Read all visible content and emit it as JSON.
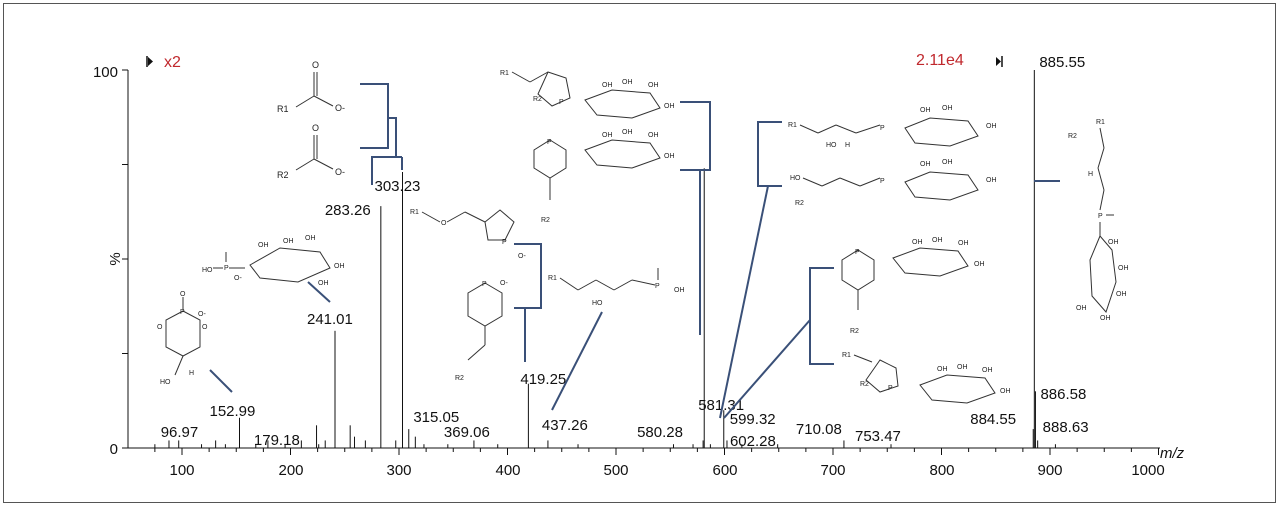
{
  "chart_data": {
    "type": "bar",
    "xlabel": "m/z",
    "ylabel": "%",
    "xlim": [
      50,
      1000
    ],
    "ylim": [
      0,
      100
    ],
    "x_ticks": [
      "100",
      "200",
      "300",
      "400",
      "500",
      "600",
      "700",
      "800",
      "900",
      "1000"
    ],
    "y_ticks": [
      "0",
      "100"
    ],
    "zoom_marker": "x2",
    "base_peak_intensity": "2.11e4",
    "labeled_peaks": [
      {
        "mz": 96.97,
        "label": "96.97",
        "intensity": 2
      },
      {
        "mz": 152.99,
        "label": "152.99",
        "intensity": 8
      },
      {
        "mz": 179.18,
        "label": "179.18",
        "intensity": 2
      },
      {
        "mz": 241.01,
        "label": "241.01",
        "intensity": 31
      },
      {
        "mz": 283.26,
        "label": "283.26",
        "intensity": 64
      },
      {
        "mz": 303.23,
        "label": "303.23",
        "intensity": 73
      },
      {
        "mz": 315.05,
        "label": "315.05",
        "intensity": 3
      },
      {
        "mz": 369.06,
        "label": "369.06",
        "intensity": 2
      },
      {
        "mz": 419.25,
        "label": "419.25",
        "intensity": 17
      },
      {
        "mz": 437.26,
        "label": "437.26",
        "intensity": 2
      },
      {
        "mz": 580.28,
        "label": "580.28",
        "intensity": 2
      },
      {
        "mz": 581.31,
        "label": "581.31",
        "intensity": 74
      },
      {
        "mz": 599.32,
        "label": "599.32",
        "intensity": 10
      },
      {
        "mz": 602.28,
        "label": "602.28",
        "intensity": 2
      },
      {
        "mz": 710.08,
        "label": "710.08",
        "intensity": 2
      },
      {
        "mz": 753.47,
        "label": "753.47",
        "intensity": 1
      },
      {
        "mz": 884.55,
        "label": "884.55",
        "intensity": 5
      },
      {
        "mz": 885.55,
        "label": "885.55",
        "intensity": 100
      },
      {
        "mz": 886.58,
        "label": "886.58",
        "intensity": 15
      },
      {
        "mz": 888.63,
        "label": "888.63",
        "intensity": 2
      }
    ],
    "minor_peaks": [
      {
        "mz": 75,
        "intensity": 1
      },
      {
        "mz": 88,
        "intensity": 2
      },
      {
        "mz": 118,
        "intensity": 1
      },
      {
        "mz": 131,
        "intensity": 2
      },
      {
        "mz": 140,
        "intensity": 1
      },
      {
        "mz": 168,
        "intensity": 1
      },
      {
        "mz": 195,
        "intensity": 1
      },
      {
        "mz": 210,
        "intensity": 2
      },
      {
        "mz": 224,
        "intensity": 6
      },
      {
        "mz": 226,
        "intensity": 1
      },
      {
        "mz": 232,
        "intensity": 2
      },
      {
        "mz": 255,
        "intensity": 6
      },
      {
        "mz": 259,
        "intensity": 3
      },
      {
        "mz": 269,
        "intensity": 2
      },
      {
        "mz": 297,
        "intensity": 2
      },
      {
        "mz": 309,
        "intensity": 5
      },
      {
        "mz": 323,
        "intensity": 1
      },
      {
        "mz": 345,
        "intensity": 1
      },
      {
        "mz": 391,
        "intensity": 1
      },
      {
        "mz": 465,
        "intensity": 1
      },
      {
        "mz": 553,
        "intensity": 1
      },
      {
        "mz": 571,
        "intensity": 1
      },
      {
        "mz": 587,
        "intensity": 1
      },
      {
        "mz": 616,
        "intensity": 1
      },
      {
        "mz": 649,
        "intensity": 1
      },
      {
        "mz": 905,
        "intensity": 1
      }
    ],
    "structure_labels": {
      "r1": "R1",
      "r2": "R2",
      "o_minus": "O-",
      "carbonyl_o": "O",
      "p": "P",
      "oh": "OH",
      "ho": "HO",
      "h": "H",
      "o": "O"
    }
  }
}
